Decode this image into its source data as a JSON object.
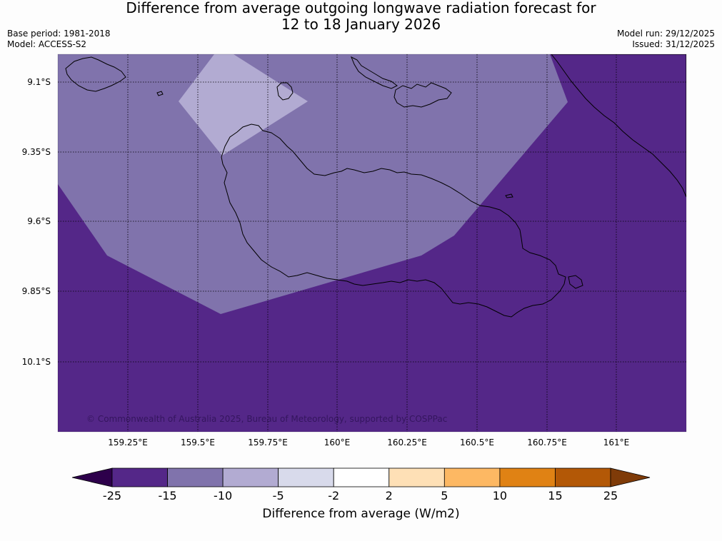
{
  "title": {
    "line1": "Difference from average outgoing longwave radiation forecast for",
    "line2": "12 to 18 January 2026"
  },
  "meta": {
    "base_period": "Base period: 1981-2018",
    "model": "Model: ACCESS-S2",
    "model_run": "Model run: 29/12/2025",
    "issued": "Issued: 31/12/2025"
  },
  "map": {
    "x_ticks": [
      "159.25°E",
      "159.5°E",
      "159.75°E",
      "160°E",
      "160.25°E",
      "160.5°E",
      "160.75°E",
      "161°E"
    ],
    "y_ticks": [
      "9.1°S",
      "9.35°S",
      "9.6°S",
      "9.85°S",
      "10.1°S"
    ],
    "copyright": "© Commonwealth of Australia 2025, Bureau of Meteorology, supported by COSPPac"
  },
  "colorbar": {
    "ticks": [
      "-25",
      "-15",
      "-10",
      "-5",
      "-2",
      "2",
      "5",
      "10",
      "15",
      "25"
    ],
    "label": "Difference from average (W/m2)",
    "colors": {
      "under": "#2d004b",
      "over": "#7f3b08",
      "bins": [
        "#542788",
        "#8073ac",
        "#b2abd2",
        "#d8daeb",
        "#ffffff",
        "#fee0b6",
        "#fdb863",
        "#e08214",
        "#b35806"
      ]
    }
  }
}
